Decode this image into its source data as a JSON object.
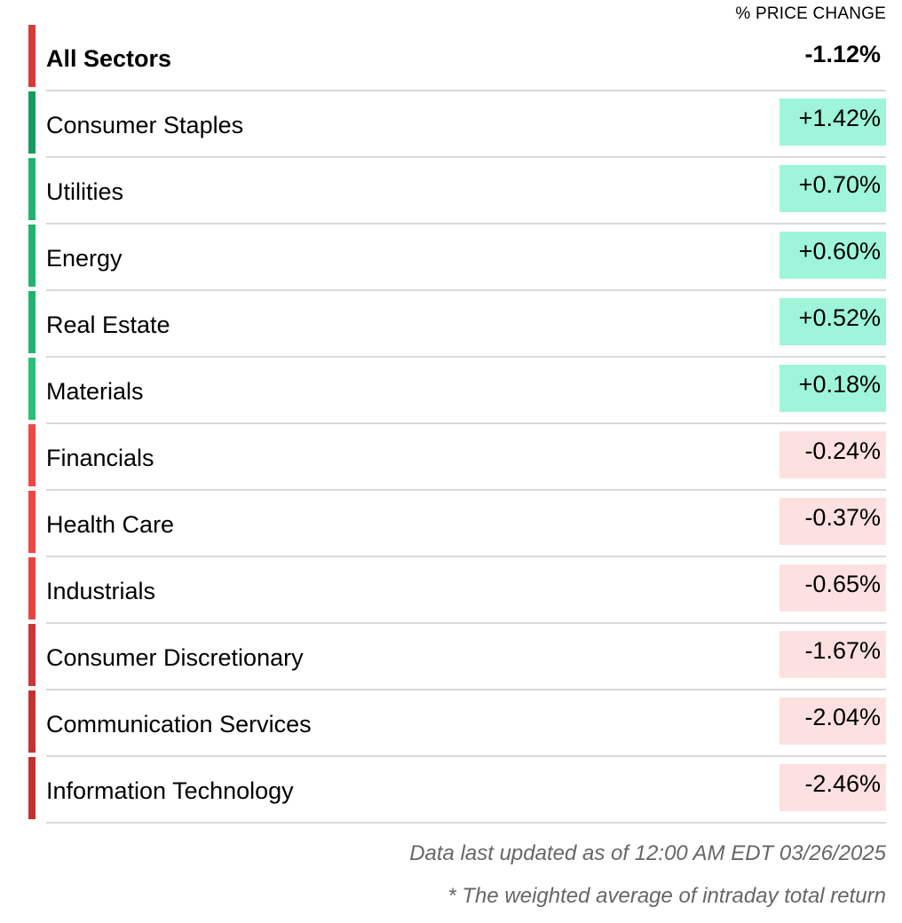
{
  "header": {
    "column_label": "% PRICE CHANGE"
  },
  "colors": {
    "positive_bg": "#9ef5d9",
    "negative_bg": "#fde0e0"
  },
  "sectors": [
    {
      "name": "All Sectors",
      "change": "-1.12%",
      "bar_color": "#d63a3a",
      "bg": "transparent",
      "total": true
    },
    {
      "name": "Consumer Staples",
      "change": "+1.42%",
      "bar_color": "#1a9a5f",
      "bg": "#9ef5d9"
    },
    {
      "name": "Utilities",
      "change": "+0.70%",
      "bar_color": "#22b46f",
      "bg": "#9ef5d9"
    },
    {
      "name": "Energy",
      "change": "+0.60%",
      "bar_color": "#22b46f",
      "bg": "#9ef5d9"
    },
    {
      "name": "Real Estate",
      "change": "+0.52%",
      "bar_color": "#22b46f",
      "bg": "#9ef5d9"
    },
    {
      "name": "Materials",
      "change": "+0.18%",
      "bar_color": "#29bf76",
      "bg": "#9ef5d9"
    },
    {
      "name": "Financials",
      "change": "-0.24%",
      "bar_color": "#f04646",
      "bg": "#fde0e0"
    },
    {
      "name": "Health Care",
      "change": "-0.37%",
      "bar_color": "#f04646",
      "bg": "#fde0e0"
    },
    {
      "name": "Industrials",
      "change": "-0.65%",
      "bar_color": "#ea4242",
      "bg": "#fde0e0"
    },
    {
      "name": "Consumer Discretionary",
      "change": "-1.67%",
      "bar_color": "#cc3535",
      "bg": "#fde0e0"
    },
    {
      "name": "Communication Services",
      "change": "-2.04%",
      "bar_color": "#c43232",
      "bg": "#fde0e0"
    },
    {
      "name": "Information Technology",
      "change": "-2.46%",
      "bar_color": "#c03030",
      "bg": "#fde0e0"
    }
  ],
  "footer": {
    "updated": "Data last updated as of 12:00 AM EDT 03/26/2025",
    "note": "* The weighted average of intraday total return"
  }
}
